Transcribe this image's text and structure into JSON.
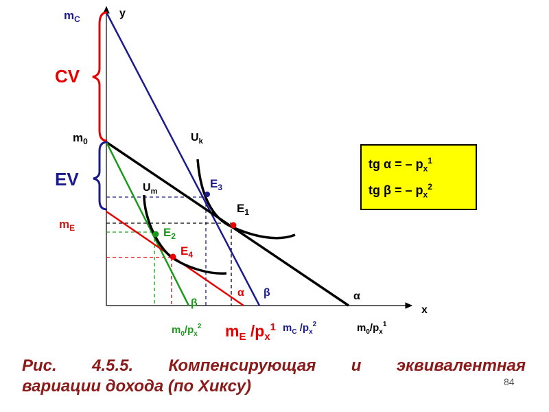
{
  "axes": {
    "y_label": "y",
    "x_label": "x"
  },
  "y_labels": {
    "m_c": "m",
    "m_c_sub": "C",
    "m_0": "m",
    "m_0_sub": "0",
    "m_e": "m",
    "m_e_sub": "E"
  },
  "brace_labels": {
    "cv": "CV",
    "ev": "EV"
  },
  "curve_labels": {
    "u_k": "U",
    "u_k_sub": "k",
    "u_m": "U",
    "u_m_sub": "m"
  },
  "point_labels": {
    "e1": "E",
    "e1_sub": "1",
    "e2": "E",
    "e2_sub": "2",
    "e3": "E",
    "e3_sub": "3",
    "e4": "E",
    "e4_sub": "4"
  },
  "angle_labels": {
    "alpha_black": "α",
    "alpha_red": "α",
    "beta_blue": "β",
    "beta_green": "β"
  },
  "x_labels": {
    "m0_px2": "m",
    "m0_px2_sub": "0",
    "m0_px2_den": "/p",
    "m0_px2_den_sub": "x",
    "m0_px2_den_sup": "2",
    "me_px1": "m",
    "me_px1_sub": "E",
    "me_px1_den": " /p",
    "me_px1_den_sub": "x",
    "me_px1_den_sup": "1",
    "mc_px2": "m",
    "mc_px2_sub": "C",
    "mc_px2_den": " /p",
    "mc_px2_den_sub": "x",
    "mc_px2_den_sup": "2",
    "m0_px1": "m",
    "m0_px1_sub": "0",
    "m0_px1_den": "/p",
    "m0_px1_den_sub": "x",
    "m0_px1_den_sup": "1"
  },
  "formulas": {
    "f1_left": "tg ",
    "f1_greek": "α",
    "f1_mid": " =  –  p",
    "f1_sub": "x",
    "f1_sup": "1",
    "f2_left": "tg ",
    "f2_greek": "β",
    "f2_mid": " = –  p",
    "f2_sub": "x",
    "f2_sup": "2"
  },
  "caption": {
    "line1": [
      "Рис.",
      "4.5.5.",
      "Компенсирующая",
      "и",
      "эквивалентная"
    ],
    "line2": "вариации дохода (по Хиксу)"
  },
  "page_number": "84",
  "colors": {
    "black": "#000000",
    "blue": "#1a1a8c",
    "red": "#e60000",
    "green": "#1a9a1a",
    "label_red": "#cc1a1a",
    "label_blue": "#1a1a8c",
    "caption": "#8b1a1a",
    "box": "#ffff00"
  }
}
